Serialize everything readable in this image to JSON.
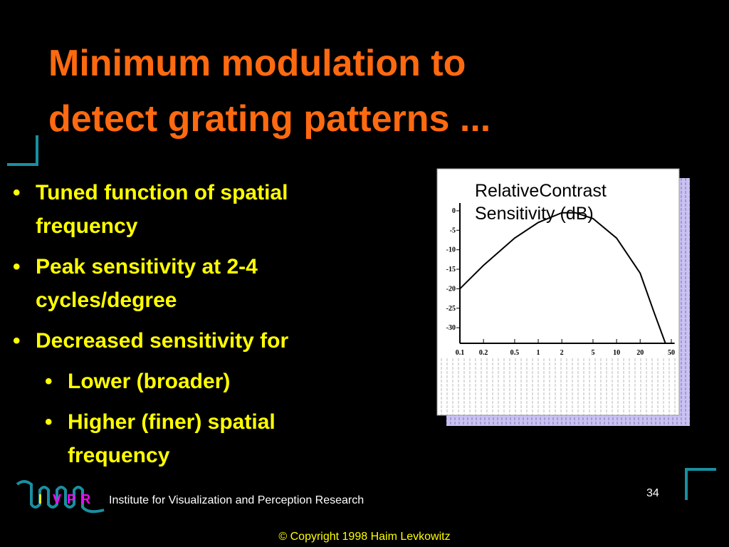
{
  "title": [
    "Minimum modulation to",
    "detect grating patterns ..."
  ],
  "bullets": [
    {
      "lines": [
        "Tuned function of spatial",
        "frequency"
      ]
    },
    {
      "lines": [
        "Peak sensitivity at 2-4",
        "cycles/degree"
      ]
    },
    {
      "lines": [
        "Decreased sensitivity for"
      ],
      "children": [
        {
          "lines": [
            "Lower (broader)"
          ]
        },
        {
          "lines": [
            "Higher (finer) spatial",
            "frequency"
          ]
        }
      ]
    }
  ],
  "chart_data": {
    "type": "line",
    "label": [
      "RelativeContrast",
      "Sensitivity (dB)"
    ],
    "x": [
      0.1,
      0.2,
      0.5,
      1,
      2,
      3,
      5,
      10,
      20,
      30,
      42
    ],
    "values": [
      -20,
      -14,
      -7,
      -3,
      -0.5,
      -0.5,
      -2,
      -7,
      -16,
      -26,
      -34
    ],
    "xlim": [
      0.1,
      55
    ],
    "xlog": true,
    "xticks": [
      0.1,
      0.2,
      0.5,
      1,
      2,
      5,
      10,
      20,
      50
    ],
    "ylim": [
      -34,
      2
    ],
    "yticks": [
      0,
      -5,
      -10,
      -15,
      -20,
      -25,
      -30
    ],
    "color": "#000000"
  },
  "footer": {
    "logo": [
      "I",
      "V",
      "P",
      "R"
    ],
    "institute": "Institute for Visualization and Perception Research",
    "page": "34",
    "copyright": "© Copyright 1998 Haim Levkowitz"
  }
}
